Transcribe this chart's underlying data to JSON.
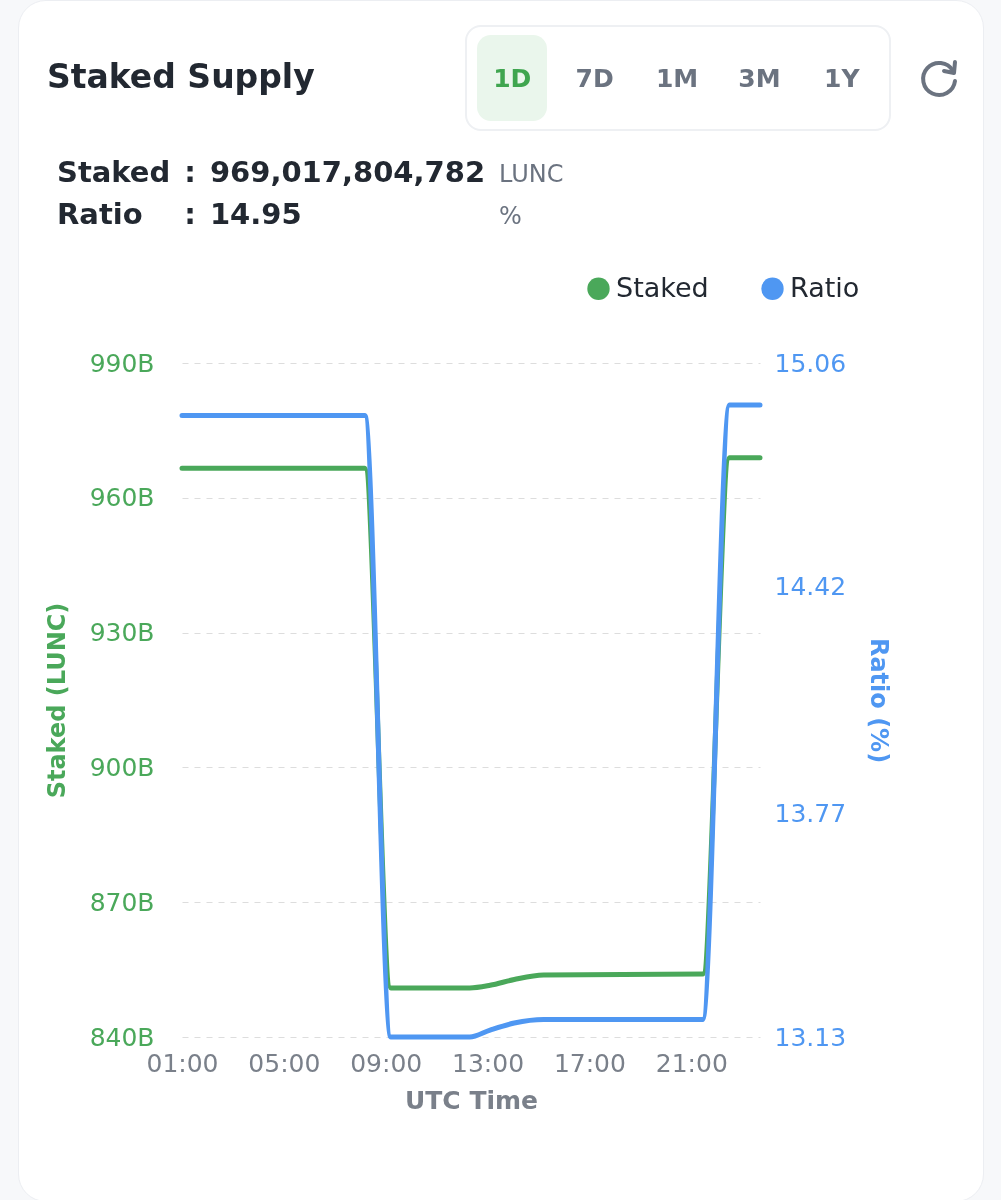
{
  "chart_data": {
    "type": "line",
    "title": "Staked Supply",
    "xlabel": "UTC Time",
    "ylabel": "Staked (LUNC)",
    "y2label": "Ratio (%)",
    "annotations": [
      "1D",
      "7D",
      "1M",
      "3M",
      "1Y",
      "Staked",
      ":",
      "969,017,804,782",
      "LUNC",
      "Ratio",
      ":",
      "14.95",
      "%"
    ],
    "x": [
      1,
      8.18,
      9.2,
      12.3,
      13.1,
      14.05,
      15.2,
      21.45,
      22.5,
      23.7
    ],
    "series": [
      {
        "name": "Staked",
        "color": "#4aa85a",
        "values": [
          966.6,
          966.6,
          850.9,
          850.9,
          851.5,
          852.8,
          853.8,
          854.0,
          968.9,
          968.9
        ]
      },
      {
        "name": "Ratio",
        "color": "#4f97f2",
        "axis": "y2",
        "values": [
          14.91,
          14.91,
          13.13,
          13.13,
          13.15,
          13.17,
          13.18,
          13.18,
          14.94,
          14.94
        ]
      }
    ],
    "xlim": [
      1,
      23.7
    ],
    "xticks": [
      {
        "value": 1,
        "label": "01:00"
      },
      {
        "value": 5,
        "label": "05:00"
      },
      {
        "value": 9,
        "label": "09:00"
      },
      {
        "value": 13,
        "label": "13:00"
      },
      {
        "value": 17,
        "label": "17:00"
      },
      {
        "value": 21,
        "label": "21:00"
      }
    ],
    "ylim": [
      840,
      990
    ],
    "yticks": [
      {
        "value": 840,
        "label": "840B"
      },
      {
        "value": 870,
        "label": "870B"
      },
      {
        "value": 900,
        "label": "900B"
      },
      {
        "value": 930,
        "label": "930B"
      },
      {
        "value": 960,
        "label": "960B"
      },
      {
        "value": 990,
        "label": "990B"
      }
    ],
    "y2lim": [
      13.13,
      15.06
    ],
    "y2ticks": [
      13.13,
      13.77,
      14.42,
      15.06
    ],
    "grid": "y",
    "legend": "top right"
  }
}
